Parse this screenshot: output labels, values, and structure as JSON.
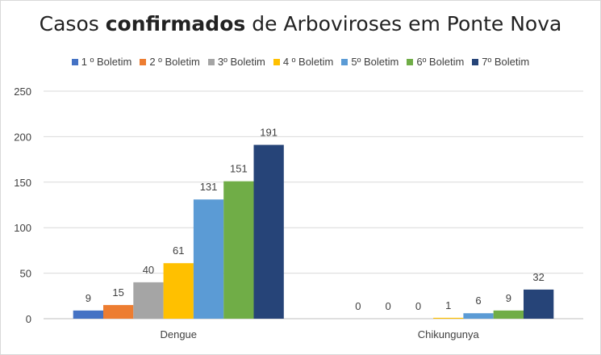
{
  "chart_data": {
    "type": "bar",
    "title_prefix": "Casos ",
    "title_bold": "confirmados",
    "title_suffix": " de Arboviroses em Ponte Nova",
    "categories": [
      "Dengue",
      "Chikungunya"
    ],
    "series": [
      {
        "name": "1 º Boletim",
        "color": "#4472c4",
        "values": [
          9,
          0
        ]
      },
      {
        "name": "2 º Boletim",
        "color": "#ed7d31",
        "values": [
          15,
          0
        ]
      },
      {
        "name": "3º Boletim",
        "color": "#a5a5a5",
        "values": [
          40,
          0
        ]
      },
      {
        "name": "4 º Boletim",
        "color": "#ffc000",
        "values": [
          61,
          1
        ]
      },
      {
        "name": "5º Boletim",
        "color": "#5b9bd5",
        "values": [
          131,
          6
        ]
      },
      {
        "name": "6º Boletim",
        "color": "#70ad47",
        "values": [
          151,
          9
        ]
      },
      {
        "name": "7º Boletim",
        "color": "#264478",
        "values": [
          191,
          32
        ]
      }
    ],
    "yticks": [
      "0",
      "50",
      "100",
      "150",
      "200",
      "250"
    ],
    "ylim": [
      0,
      250
    ],
    "grid": true,
    "legend_position": "top"
  }
}
